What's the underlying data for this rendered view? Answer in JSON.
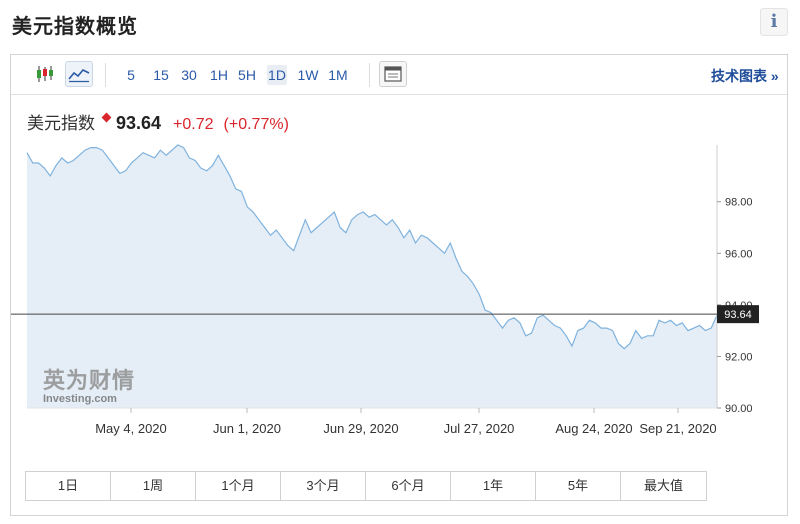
{
  "header": {
    "title": "美元指数概览",
    "info_label": "i"
  },
  "toolbar": {
    "intervals": [
      "5",
      "15",
      "30",
      "1H",
      "5H",
      "1D",
      "1W",
      "1M"
    ],
    "active_interval": "1D",
    "tech_link": "技术图表 »"
  },
  "quote": {
    "name": "美元指数",
    "price": "93.64",
    "change": "+0.72",
    "change_pct": "(+0.77%)"
  },
  "watermark": {
    "cn": "英为财情",
    "en": "Investing.com"
  },
  "ranges": [
    "1日",
    "1周",
    "1个月",
    "3个月",
    "6个月",
    "1年",
    "5年",
    "最大值"
  ],
  "colors": {
    "line": "#7fb2dd",
    "area": "#e5eef6",
    "up": "#d9262c",
    "link": "#1f4d9a"
  },
  "chart_data": {
    "type": "area",
    "title": "美元指数",
    "y_ticks": [
      "98.00",
      "96.00",
      "94.00",
      "92.00",
      "90.00"
    ],
    "ylim": [
      90,
      100.2
    ],
    "x_tick_labels": [
      "May 4, 2020",
      "Jun 1, 2020",
      "Jun 29, 2020",
      "Jul 27, 2020",
      "Aug 24, 2020",
      "Sep 21, 2020"
    ],
    "last_value": "93.64",
    "series": [
      {
        "values": [
          99.9,
          99.5,
          99.5,
          99.3,
          99.0,
          99.4,
          99.7,
          99.5,
          99.6,
          99.8,
          100.0,
          100.1,
          100.1,
          100.0,
          99.7,
          99.4,
          99.1,
          99.2,
          99.5,
          99.7,
          99.9,
          99.8,
          99.7,
          100.0,
          99.8,
          100.0,
          100.2,
          100.1,
          99.7,
          99.6,
          99.3,
          99.2,
          99.4,
          99.8,
          99.4,
          99.0,
          98.5,
          98.4,
          97.8,
          97.6,
          97.3,
          97.0,
          96.7,
          96.9,
          96.6,
          96.3,
          96.1,
          96.7,
          97.3,
          96.8,
          97.0,
          97.2,
          97.4,
          97.6,
          97.0,
          96.8,
          97.3,
          97.5,
          97.6,
          97.4,
          97.5,
          97.3,
          97.1,
          97.3,
          97.0,
          96.6,
          96.9,
          96.4,
          96.7,
          96.6,
          96.4,
          96.2,
          96.0,
          96.4,
          95.8,
          95.3,
          95.1,
          94.8,
          94.4,
          93.8,
          93.7,
          93.4,
          93.1,
          93.4,
          93.5,
          93.3,
          92.8,
          92.9,
          93.5,
          93.6,
          93.4,
          93.2,
          93.1,
          92.8,
          92.4,
          93.0,
          93.1,
          93.4,
          93.3,
          93.1,
          93.1,
          93.0,
          92.5,
          92.3,
          92.5,
          93.0,
          92.7,
          92.8,
          92.8,
          93.4,
          93.3,
          93.4,
          93.2,
          93.3,
          93.0,
          93.1,
          93.2,
          93.0,
          93.1,
          93.6
        ]
      }
    ]
  }
}
